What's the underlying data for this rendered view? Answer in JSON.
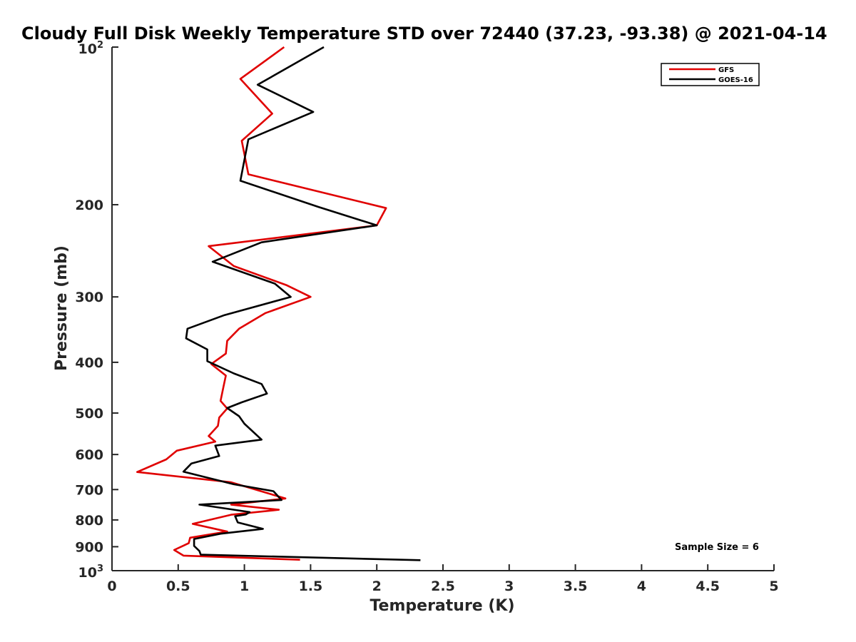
{
  "chart_data": {
    "type": "line",
    "title": "Cloudy Full Disk Weekly Temperature STD over 72440 (37.23, -93.38) @ 2021-04-14",
    "xlabel": "Temperature (K)",
    "ylabel": "Pressure (mb)",
    "xlim": [
      0,
      5
    ],
    "ylim": [
      100,
      1000
    ],
    "yscale": "log",
    "y_reversed": true,
    "grid": false,
    "legend_placement": "top-right",
    "x_ticks": [
      {
        "value": 0,
        "label": "0"
      },
      {
        "value": 0.5,
        "label": "0.5"
      },
      {
        "value": 1,
        "label": "1"
      },
      {
        "value": 1.5,
        "label": "1.5"
      },
      {
        "value": 2,
        "label": "2"
      },
      {
        "value": 2.5,
        "label": "2.5"
      },
      {
        "value": 3,
        "label": "3"
      },
      {
        "value": 3.5,
        "label": "3.5"
      },
      {
        "value": 4,
        "label": "4"
      },
      {
        "value": 4.5,
        "label": "4.5"
      },
      {
        "value": 5,
        "label": "5"
      }
    ],
    "y_ticks": [
      {
        "value": 100,
        "base": "10",
        "exp": "2"
      },
      {
        "value": 200,
        "label": "200"
      },
      {
        "value": 300,
        "label": "300"
      },
      {
        "value": 400,
        "label": "400"
      },
      {
        "value": 500,
        "label": "500"
      },
      {
        "value": 600,
        "label": "600"
      },
      {
        "value": 700,
        "label": "700"
      },
      {
        "value": 800,
        "label": "800"
      },
      {
        "value": 900,
        "label": "900"
      },
      {
        "value": 1000,
        "base": "10",
        "exp": "3"
      }
    ],
    "annotation": "Sample Size = 6",
    "series": [
      {
        "name": "GFS",
        "color": "#e00000",
        "points": [
          [
            1.3,
            100
          ],
          [
            0.97,
            115
          ],
          [
            1.21,
            134
          ],
          [
            0.98,
            151
          ],
          [
            1.03,
            175
          ],
          [
            2.07,
            203
          ],
          [
            2.0,
            219
          ],
          [
            0.73,
            240
          ],
          [
            0.92,
            262
          ],
          [
            1.32,
            285
          ],
          [
            1.5,
            300
          ],
          [
            1.16,
            322
          ],
          [
            0.96,
            345
          ],
          [
            0.87,
            364
          ],
          [
            0.86,
            385
          ],
          [
            0.75,
            403
          ],
          [
            0.86,
            424
          ],
          [
            0.84,
            448
          ],
          [
            0.82,
            474
          ],
          [
            0.87,
            490
          ],
          [
            0.81,
            510
          ],
          [
            0.8,
            529
          ],
          [
            0.73,
            553
          ],
          [
            0.78,
            567
          ],
          [
            0.49,
            590
          ],
          [
            0.41,
            613
          ],
          [
            0.19,
            648
          ],
          [
            0.9,
            678
          ],
          [
            1.31,
            728
          ],
          [
            0.9,
            748
          ],
          [
            1.26,
            765
          ],
          [
            0.9,
            782
          ],
          [
            0.61,
            814
          ],
          [
            0.87,
            842
          ],
          [
            0.59,
            865
          ],
          [
            0.58,
            886
          ],
          [
            0.47,
            913
          ],
          [
            0.54,
            936
          ],
          [
            1.42,
            953
          ]
        ]
      },
      {
        "name": "GOES-16",
        "color": "#000000",
        "points": [
          [
            1.6,
            100
          ],
          [
            1.1,
            118
          ],
          [
            1.52,
            133
          ],
          [
            1.03,
            150
          ],
          [
            0.97,
            180
          ],
          [
            1.56,
            202
          ],
          [
            2.0,
            219
          ],
          [
            1.13,
            236
          ],
          [
            0.76,
            257
          ],
          [
            1.23,
            283
          ],
          [
            1.35,
            300
          ],
          [
            0.85,
            325
          ],
          [
            0.57,
            345
          ],
          [
            0.56,
            360
          ],
          [
            0.72,
            378
          ],
          [
            0.72,
            398
          ],
          [
            0.92,
            420
          ],
          [
            1.13,
            440
          ],
          [
            1.17,
            459
          ],
          [
            0.98,
            477
          ],
          [
            0.87,
            489
          ],
          [
            0.96,
            507
          ],
          [
            1.0,
            524
          ],
          [
            1.13,
            562
          ],
          [
            0.78,
            577
          ],
          [
            0.81,
            604
          ],
          [
            0.6,
            624
          ],
          [
            0.54,
            647
          ],
          [
            0.92,
            684
          ],
          [
            1.22,
            705
          ],
          [
            1.28,
            733
          ],
          [
            0.66,
            748
          ],
          [
            1.04,
            773
          ],
          [
            1.01,
            781
          ],
          [
            0.93,
            787
          ],
          [
            0.95,
            809
          ],
          [
            1.14,
            832
          ],
          [
            0.82,
            850
          ],
          [
            0.62,
            870
          ],
          [
            0.62,
            897
          ],
          [
            0.66,
            917
          ],
          [
            0.67,
            932
          ],
          [
            2.33,
            955
          ]
        ]
      }
    ]
  }
}
